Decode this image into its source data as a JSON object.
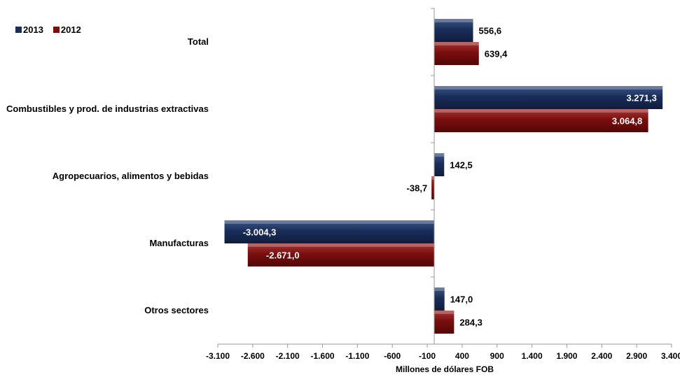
{
  "legend": [
    {
      "label": "2013",
      "color": "#1a2e5a"
    },
    {
      "label": "2012",
      "color": "#7a0f0f"
    }
  ],
  "chart_data": {
    "type": "bar",
    "orientation": "horizontal",
    "categories": [
      "Total",
      "Combustibles y prod. de industrias extractivas",
      "Agropecuarios, alimentos y bebidas",
      "Manufacturas",
      "Otros sectores"
    ],
    "series": [
      {
        "name": "2013",
        "color": "#1a2e5a",
        "values": [
          556.6,
          3271.3,
          142.5,
          -3004.3,
          147.0
        ],
        "labels": [
          "556,6",
          "3.271,3",
          "142,5",
          "-3.004,3",
          "147,0"
        ]
      },
      {
        "name": "2012",
        "color": "#7a0f0f",
        "values": [
          639.4,
          3064.8,
          -38.7,
          -2671.0,
          284.3
        ],
        "labels": [
          "639,4",
          "3.064,8",
          "-38,7",
          "-2.671,0",
          "284,3"
        ]
      }
    ],
    "xlim": [
      -3100,
      3400
    ],
    "xticks": [
      -3100,
      -2600,
      -2100,
      -1600,
      -1100,
      -600,
      -100,
      400,
      900,
      1400,
      1900,
      2400,
      2900,
      3400
    ],
    "xtick_labels": [
      "-3.100",
      "-2.600",
      "-2.100",
      "-1.600",
      "-1.100",
      "-600",
      "-100",
      "400",
      "900",
      "1.400",
      "1.900",
      "2.400",
      "2.900",
      "3.400"
    ],
    "xlabel": "Millones de dólares FOB",
    "ylabel": "",
    "title": "",
    "grid": false,
    "legend_position": "top-left"
  }
}
